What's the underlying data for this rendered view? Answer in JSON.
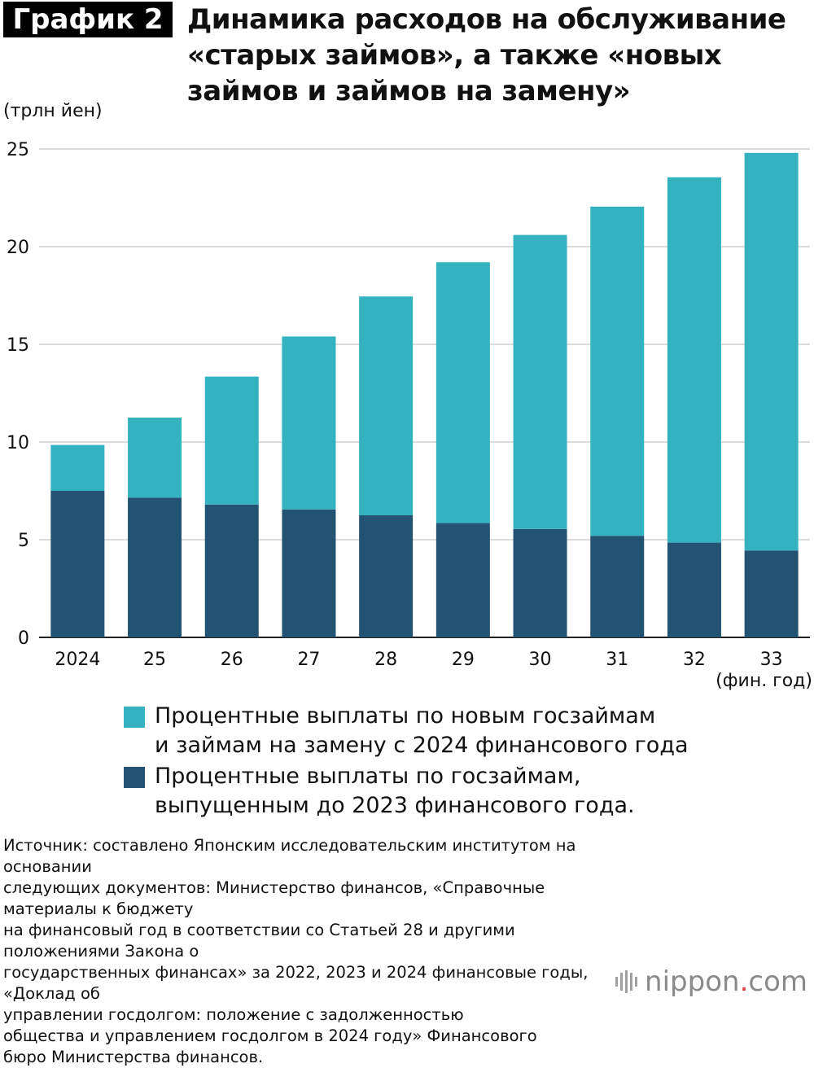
{
  "header": {
    "badge": "График 2",
    "title": "Динамика расходов на обслуживание «старых займов», а также «новых займов и займов на замену»"
  },
  "unit_label": "(трлн йен)",
  "fiscal_year_label": "(фин. год)",
  "legend": [
    {
      "label_line1": "Процентные выплаты по новым госзаймам",
      "label_line2": "и займам на замену с 2024 финансового года",
      "color": "#35b2c0"
    },
    {
      "label_line1": "Процентные выплаты по госзаймам,",
      "label_line2": "выпущенным до 2023 финансового года.",
      "color": "#235372"
    }
  ],
  "source_lines": [
    "Источник: составлено Японским исследовательским институтом на основании",
    "следующих документов: Министерство финансов, «Справочные материалы к бюджету",
    "на финансовый год в соответствии со Статьей 28 и другими положениями Закона о",
    "государственных финансах» за 2022, 2023 и 2024 финансовые годы, «Доклад об",
    "управлении госдолгом: положение с задолженностью",
    "общества и управлением госдолгом в 2024 году» Финансового",
    "бюро Министерства финансов."
  ],
  "logo": {
    "text": "nippon",
    "dot": ".",
    "suffix": "com",
    "icon": "nippon-logo-icon"
  },
  "chart_data": {
    "type": "bar",
    "stacked": true,
    "categories": [
      "2024",
      "25",
      "26",
      "27",
      "28",
      "29",
      "30",
      "31",
      "32",
      "33"
    ],
    "series": [
      {
        "name": "Процентные выплаты по госзаймам, выпущенным до 2023 финансового года.",
        "color": "#235372",
        "values": [
          7.5,
          7.15,
          6.8,
          6.55,
          6.25,
          5.85,
          5.55,
          5.2,
          4.85,
          4.45
        ]
      },
      {
        "name": "Процентные выплаты по новым госзаймам и займам на замену с 2024 финансового года",
        "color": "#35b2c0",
        "values": [
          2.35,
          4.1,
          6.55,
          8.85,
          11.2,
          13.35,
          15.05,
          16.85,
          18.7,
          20.35
        ]
      }
    ],
    "ylim": [
      0,
      25
    ],
    "yticks": [
      0,
      5,
      10,
      15,
      20,
      25
    ],
    "grid": true,
    "title": "Динамика расходов на обслуживание «старых займов», а также «новых займов и займов на замену»",
    "ylabel": "(трлн йен)",
    "xlabel": "(фин. год)",
    "legend_position": "bottom"
  }
}
